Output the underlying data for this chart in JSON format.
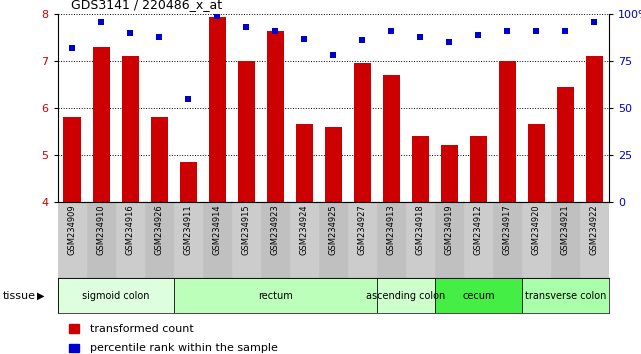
{
  "title": "GDS3141 / 220486_x_at",
  "samples": [
    "GSM234909",
    "GSM234910",
    "GSM234916",
    "GSM234926",
    "GSM234911",
    "GSM234914",
    "GSM234915",
    "GSM234923",
    "GSM234924",
    "GSM234925",
    "GSM234927",
    "GSM234913",
    "GSM234918",
    "GSM234919",
    "GSM234912",
    "GSM234917",
    "GSM234920",
    "GSM234921",
    "GSM234922"
  ],
  "counts": [
    5.8,
    7.3,
    7.1,
    5.8,
    4.85,
    7.95,
    7.0,
    7.65,
    5.65,
    5.6,
    6.95,
    6.7,
    5.4,
    5.2,
    5.4,
    7.0,
    5.65,
    6.45,
    7.1
  ],
  "percentiles": [
    82,
    96,
    90,
    88,
    55,
    99,
    93,
    91,
    87,
    78,
    86,
    91,
    88,
    85,
    89,
    91,
    91,
    91,
    96
  ],
  "ylim": [
    4,
    8
  ],
  "yticks": [
    4,
    5,
    6,
    7,
    8
  ],
  "y2ticks_vals": [
    0,
    25,
    50,
    75,
    100
  ],
  "y2ticks_labels": [
    "0",
    "25",
    "50",
    "75",
    "100%"
  ],
  "bar_color": "#cc0000",
  "dot_color": "#0000cc",
  "tissue_groups": [
    {
      "label": "sigmoid colon",
      "start": 0,
      "end": 4,
      "color": "#ddffdd"
    },
    {
      "label": "rectum",
      "start": 4,
      "end": 11,
      "color": "#bbffbb"
    },
    {
      "label": "ascending colon",
      "start": 11,
      "end": 13,
      "color": "#ccffcc"
    },
    {
      "label": "cecum",
      "start": 13,
      "end": 16,
      "color": "#44ee44"
    },
    {
      "label": "transverse colon",
      "start": 16,
      "end": 19,
      "color": "#aaffaa"
    }
  ],
  "xlabel_tissue": "tissue",
  "legend_count": "transformed count",
  "legend_pct": "percentile rank within the sample",
  "xtick_bg": "#cccccc",
  "xtick_border": "#888888"
}
